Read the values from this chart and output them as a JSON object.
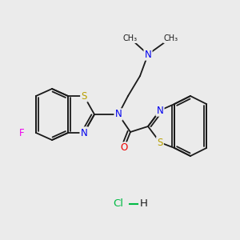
{
  "background_color": "#ebebeb",
  "bond_color": "#1a1a1a",
  "atom_colors": {
    "N": "#0000ff",
    "S": "#ccaa00",
    "O": "#ff0000",
    "F": "#ff00ff",
    "C": "#1a1a1a",
    "Cl": "#00cc55",
    "H": "#1a1a1a"
  },
  "figsize": [
    3.0,
    3.0
  ],
  "dpi": 100,
  "S_color": "#b8a000",
  "N_color": "#0000ee",
  "O_color": "#ee0000",
  "F_color": "#ee00ee",
  "Cl_color": "#00bb44"
}
